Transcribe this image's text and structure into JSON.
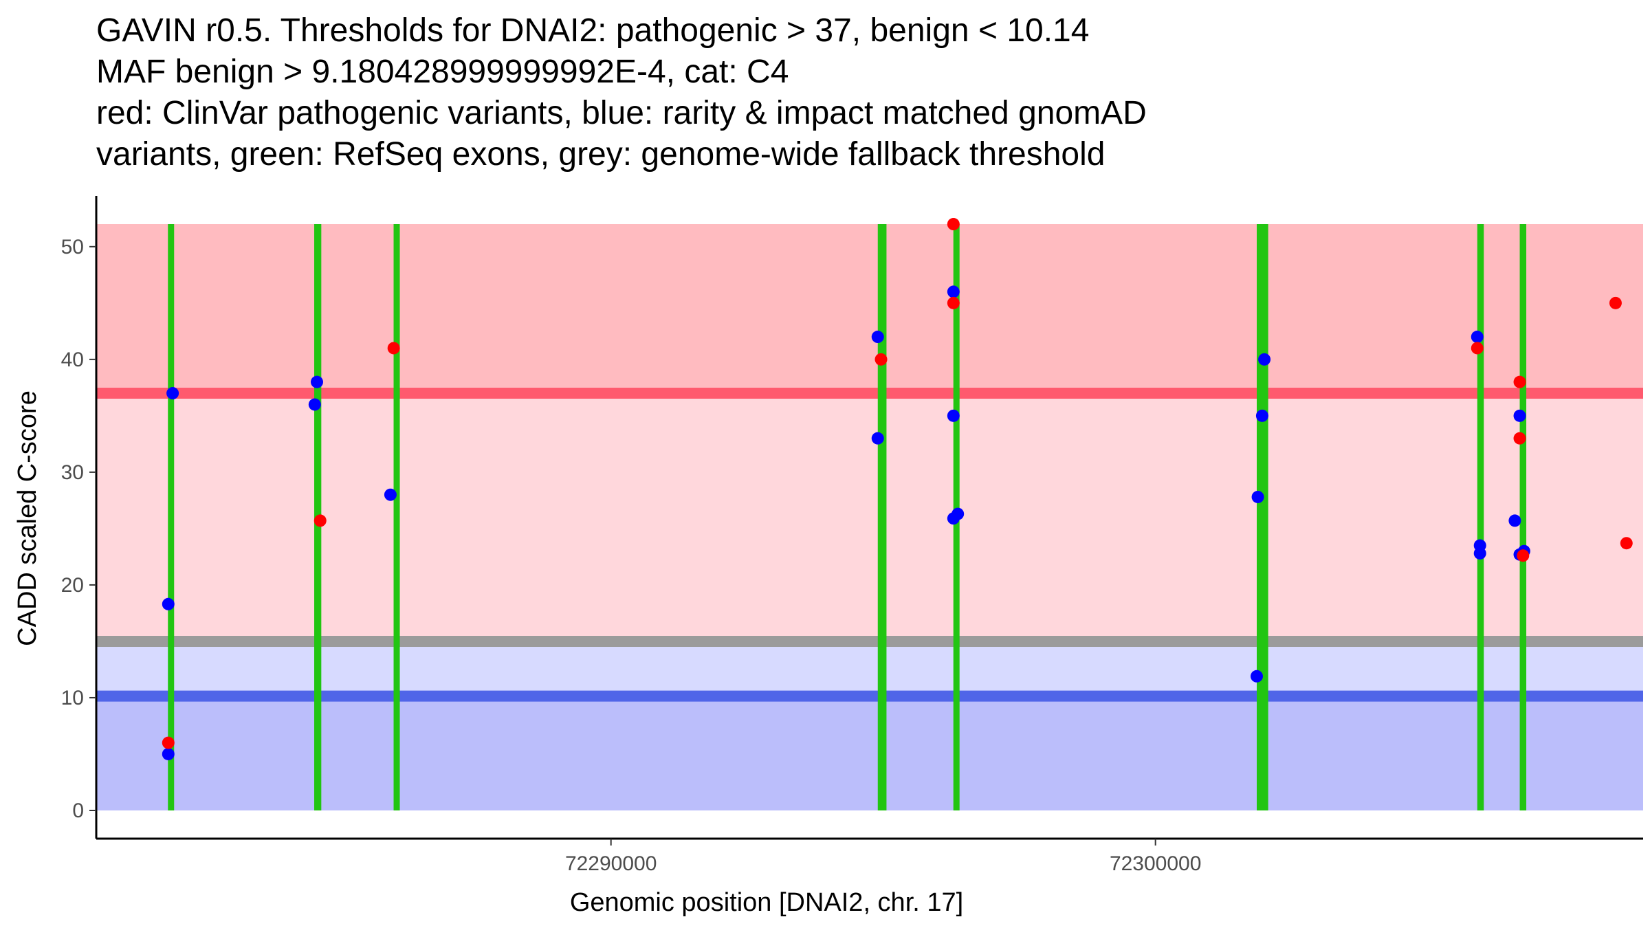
{
  "colors": {
    "pathogenic_band": "#ffbbc0",
    "mid_band": "#ffd7dc",
    "lower_mid_band": "#d7daff",
    "benign_band": "#bbbefb",
    "pathogenic_line": "#ff5a6e",
    "fallback_line": "#9b9b9b",
    "benign_line": "#5065e8",
    "exon": "#22c512",
    "clinvar": "#ff0000",
    "gnomad": "#0000ff",
    "axis": "#000000"
  },
  "chart_data": {
    "type": "scatter",
    "title": [
      "GAVIN r0.5. Thresholds for DNAI2: pathogenic > 37, benign < 10.14",
      "MAF benign > 9.180428999999992E-4, cat: C4",
      "red: ClinVar pathogenic variants, blue: rarity & impact matched gnomAD",
      "variants, green: RefSeq exons, grey: genome-wide fallback threshold"
    ],
    "xlabel": "Genomic position [DNAI2, chr. 17]",
    "ylabel": "CADD scaled C-score",
    "xlim": [
      72280547,
      72308956
    ],
    "ylim": [
      -2.5,
      54.5
    ],
    "x_ticks": [
      72290000,
      72300000
    ],
    "x_tick_labels": [
      "72290000",
      "72300000"
    ],
    "y_ticks": [
      0,
      10,
      20,
      30,
      40,
      50
    ],
    "y_tick_labels": [
      "0",
      "10",
      "20",
      "30",
      "40",
      "50"
    ],
    "thresholds": {
      "pathogenic": 37,
      "benign": 10.14,
      "fallback": 15,
      "max_score": 52
    },
    "exons": [
      {
        "start": 72281870,
        "end": 72281970
      },
      {
        "start": 72284550,
        "end": 72284680
      },
      {
        "start": 72286010,
        "end": 72286120
      },
      {
        "start": 72294900,
        "end": 72295060
      },
      {
        "start": 72296290,
        "end": 72296400
      },
      {
        "start": 72301860,
        "end": 72302070
      },
      {
        "start": 72305910,
        "end": 72306030
      },
      {
        "start": 72306690,
        "end": 72306810
      }
    ],
    "series": [
      {
        "name": "gnomAD",
        "points": [
          {
            "x": 72281870,
            "y": 5
          },
          {
            "x": 72281870,
            "y": 18.3
          },
          {
            "x": 72281950,
            "y": 37
          },
          {
            "x": 72284560,
            "y": 36
          },
          {
            "x": 72284600,
            "y": 38
          },
          {
            "x": 72285950,
            "y": 28
          },
          {
            "x": 72294900,
            "y": 42
          },
          {
            "x": 72294900,
            "y": 33
          },
          {
            "x": 72296290,
            "y": 46
          },
          {
            "x": 72296290,
            "y": 35
          },
          {
            "x": 72296290,
            "y": 25.9
          },
          {
            "x": 72296370,
            "y": 26.3
          },
          {
            "x": 72301860,
            "y": 11.9
          },
          {
            "x": 72301880,
            "y": 27.8
          },
          {
            "x": 72301960,
            "y": 35
          },
          {
            "x": 72302000,
            "y": 40
          },
          {
            "x": 72305910,
            "y": 42
          },
          {
            "x": 72305960,
            "y": 23.5
          },
          {
            "x": 72305960,
            "y": 22.8
          },
          {
            "x": 72306600,
            "y": 25.7
          },
          {
            "x": 72306690,
            "y": 35
          },
          {
            "x": 72306690,
            "y": 22.7
          },
          {
            "x": 72306770,
            "y": 23
          }
        ]
      },
      {
        "name": "ClinVar",
        "points": [
          {
            "x": 72281870,
            "y": 6
          },
          {
            "x": 72284660,
            "y": 25.7
          },
          {
            "x": 72286010,
            "y": 41
          },
          {
            "x": 72294960,
            "y": 40
          },
          {
            "x": 72296290,
            "y": 52
          },
          {
            "x": 72296290,
            "y": 45
          },
          {
            "x": 72305910,
            "y": 41
          },
          {
            "x": 72306690,
            "y": 38
          },
          {
            "x": 72306690,
            "y": 33
          },
          {
            "x": 72306750,
            "y": 22.6
          },
          {
            "x": 72308450,
            "y": 45
          },
          {
            "x": 72308650,
            "y": 23.7
          }
        ]
      }
    ]
  }
}
